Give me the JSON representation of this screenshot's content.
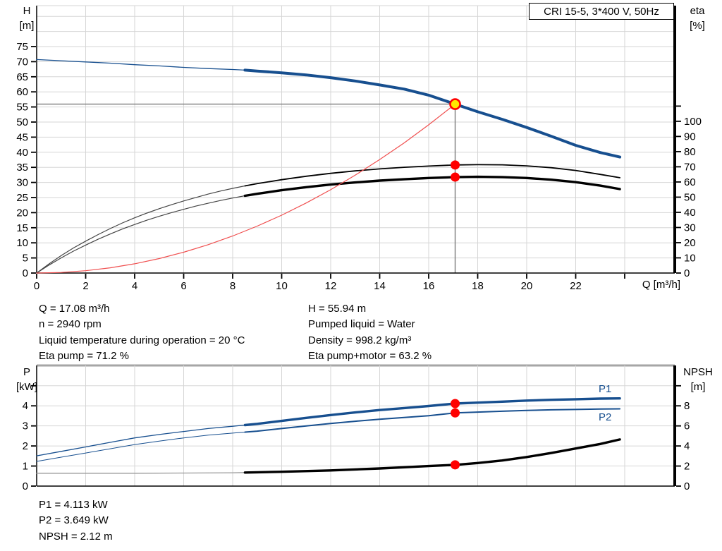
{
  "title_box": {
    "label": "CRI 15-5, 3*400 V, 50Hz"
  },
  "info": {
    "left": [
      "Q = 17.08 m³/h",
      "n = 2940 rpm",
      "Liquid temperature during operation = 20 °C",
      "Eta pump = 71.2 %"
    ],
    "right": [
      "H = 55.94 m",
      "Pumped liquid = Water",
      "Density = 998.2 kg/m³",
      "Eta pump+motor = 63.2 %"
    ],
    "bottom": [
      "P1 = 4.113 kW",
      "P2 = 3.649 kW",
      "NPSH = 2.12 m"
    ]
  },
  "colors": {
    "curve_blue": "#174f8f",
    "marker_red": "#ff0000",
    "system_red": "#f05050",
    "op_yellow": "#ffe800",
    "grid": "#d6d6d6",
    "guide_gray": "#7a7a7a",
    "axis_black": "#000000",
    "eta_thin": "#444444",
    "npsh_thin": "#999999",
    "chart2_top_border": "#a6a6a6"
  },
  "chart_data": [
    {
      "type": "line",
      "title": "CRI 15-5, 3*400 V, 50Hz",
      "grid_color": "#d6d6d6",
      "guide_color": "#7a7a7a",
      "x_axis": {
        "label": "Q [m³/h]",
        "min": 0,
        "max": 26,
        "grid_step": 2,
        "grid_max": 24,
        "labeled_ticks": [
          0,
          2,
          4,
          6,
          8,
          10,
          12,
          14,
          16,
          18,
          20,
          22
        ],
        "unlabeled_ticks": [
          24
        ]
      },
      "y_left": {
        "name": "H",
        "unit": "[m]",
        "min": 0,
        "step": 5,
        "grid_max": 85,
        "labeled_ticks": [
          0,
          5,
          10,
          15,
          20,
          25,
          30,
          35,
          40,
          45,
          50,
          55,
          60,
          65,
          70,
          75
        ],
        "unlabeled_ticks": []
      },
      "y_right": {
        "name": "eta",
        "unit": "[%]",
        "min": 0,
        "step": 10,
        "labeled_ticks": [
          0,
          10,
          20,
          30,
          40,
          50,
          60,
          70,
          80,
          90,
          100
        ],
        "unlabeled_ticks": [
          110
        ]
      },
      "series": [
        {
          "label": "H curve",
          "axis": "left",
          "color": "#174f8f",
          "thin_color": "#174f8f",
          "split_Q": 8.5,
          "thin_width": 1.3,
          "thick_width": 4,
          "points": [
            [
              0,
              70.7
            ],
            [
              1,
              70.3
            ],
            [
              2,
              69.9
            ],
            [
              3,
              69.5
            ],
            [
              4,
              69.0
            ],
            [
              5,
              68.6
            ],
            [
              6,
              68.1
            ],
            [
              7,
              67.7
            ],
            [
              8,
              67.4
            ],
            [
              8.5,
              67.2
            ],
            [
              9,
              66.9
            ],
            [
              10,
              66.3
            ],
            [
              11,
              65.6
            ],
            [
              12,
              64.7
            ],
            [
              13,
              63.6
            ],
            [
              14,
              62.3
            ],
            [
              15,
              60.9
            ],
            [
              16,
              58.9
            ],
            [
              17.08,
              55.94
            ],
            [
              18,
              53.4
            ],
            [
              19,
              50.9
            ],
            [
              20,
              48.2
            ],
            [
              21,
              45.3
            ],
            [
              22,
              42.3
            ],
            [
              23,
              39.9
            ],
            [
              23.8,
              38.4
            ]
          ]
        },
        {
          "label": "Eta pump",
          "axis": "right",
          "color": "#000000",
          "thin_color": "#444444",
          "split_Q": 8.5,
          "thin_width": 1.2,
          "thick_width": 1.8,
          "points": [
            [
              0,
              0
            ],
            [
              0.5,
              6
            ],
            [
              1,
              11.5
            ],
            [
              1.5,
              16.5
            ],
            [
              2,
              21
            ],
            [
              2.5,
              25.3
            ],
            [
              3,
              29.3
            ],
            [
              3.5,
              33
            ],
            [
              4,
              36.4
            ],
            [
              4.5,
              39.5
            ],
            [
              5,
              42.4
            ],
            [
              5.5,
              45
            ],
            [
              6,
              47.5
            ],
            [
              6.5,
              49.8
            ],
            [
              7,
              52
            ],
            [
              7.5,
              54
            ],
            [
              8,
              55.8
            ],
            [
              8.5,
              57.4
            ],
            [
              9,
              58.9
            ],
            [
              10,
              61.5
            ],
            [
              11,
              63.8
            ],
            [
              12,
              65.7
            ],
            [
              13,
              67.3
            ],
            [
              14,
              68.6
            ],
            [
              15,
              69.7
            ],
            [
              16,
              70.5
            ],
            [
              17.08,
              71.2
            ],
            [
              18,
              71.4
            ],
            [
              19,
              71.3
            ],
            [
              20,
              70.6
            ],
            [
              21,
              69.4
            ],
            [
              22,
              67.6
            ],
            [
              23,
              65.0
            ],
            [
              23.8,
              62.8
            ]
          ]
        },
        {
          "label": "Eta pump+motor",
          "axis": "right",
          "color": "#000000",
          "thin_color": "#444444",
          "split_Q": 8.5,
          "thin_width": 1.2,
          "thick_width": 3.4,
          "points": [
            [
              0,
              0
            ],
            [
              0.5,
              5.2
            ],
            [
              1,
              10
            ],
            [
              1.5,
              14.4
            ],
            [
              2,
              18.4
            ],
            [
              2.5,
              22.2
            ],
            [
              3,
              25.7
            ],
            [
              3.5,
              29
            ],
            [
              4,
              32
            ],
            [
              4.5,
              34.8
            ],
            [
              5,
              37.4
            ],
            [
              5.5,
              39.8
            ],
            [
              6,
              42
            ],
            [
              6.5,
              44.1
            ],
            [
              7,
              46
            ],
            [
              7.5,
              47.8
            ],
            [
              8,
              49.4
            ],
            [
              8.5,
              50.9
            ],
            [
              9,
              52.2
            ],
            [
              10,
              54.6
            ],
            [
              11,
              56.6
            ],
            [
              12,
              58.3
            ],
            [
              13,
              59.7
            ],
            [
              14,
              60.9
            ],
            [
              15,
              61.8
            ],
            [
              16,
              62.6
            ],
            [
              17.08,
              63.2
            ],
            [
              18,
              63.4
            ],
            [
              19,
              63.2
            ],
            [
              20,
              62.6
            ],
            [
              21,
              61.5
            ],
            [
              22,
              59.9
            ],
            [
              23,
              57.6
            ],
            [
              23.8,
              55.3
            ]
          ]
        },
        {
          "label": "System curve",
          "axis": "left",
          "color": "#f05050",
          "thin_color": "#f05050",
          "split_Q": null,
          "thin_width": 1.2,
          "thick_width": 1.2,
          "points": [
            [
              0,
              0
            ],
            [
              1,
              0.19
            ],
            [
              2,
              0.77
            ],
            [
              3,
              1.73
            ],
            [
              4,
              3.07
            ],
            [
              5,
              4.79
            ],
            [
              6,
              6.9
            ],
            [
              7,
              9.4
            ],
            [
              8,
              12.27
            ],
            [
              9,
              15.53
            ],
            [
              10,
              19.17
            ],
            [
              11,
              23.2
            ],
            [
              12,
              27.6
            ],
            [
              13,
              32.4
            ],
            [
              14,
              37.6
            ],
            [
              15,
              43.1
            ],
            [
              16,
              49.1
            ],
            [
              17.08,
              55.94
            ]
          ]
        }
      ],
      "operating_point": {
        "Q": 17.08,
        "H": 55.94
      },
      "markers": [
        {
          "Q": 17.08,
          "axis": "right",
          "value": 71.2
        },
        {
          "Q": 17.08,
          "axis": "right",
          "value": 63.2
        }
      ],
      "guide_lines": {
        "horizontal_H": 55.94,
        "vertical_Q": 17.08
      }
    },
    {
      "type": "line",
      "title": "",
      "grid_color": "#d6d6d6",
      "guide_color": "#7a7a7a",
      "x_axis": {
        "label": "",
        "min": 0,
        "max": 26,
        "grid_step": 2,
        "grid_max": 24,
        "labeled_ticks": [],
        "unlabeled_ticks": []
      },
      "y_left": {
        "name": "P",
        "unit": "[kW]",
        "min": 0,
        "step": 1,
        "grid_max": 5,
        "labeled_ticks": [
          0,
          1,
          2,
          3,
          4
        ],
        "unlabeled_ticks": [
          5
        ]
      },
      "y_right": {
        "name": "NPSH",
        "unit": "[m]",
        "min": 0,
        "step": 2,
        "labeled_ticks": [
          0,
          2,
          4,
          6,
          8
        ],
        "unlabeled_ticks": [
          10
        ]
      },
      "series": [
        {
          "label": "P1",
          "axis": "left",
          "color": "#174f8f",
          "thin_color": "#174f8f",
          "split_Q": 8.5,
          "thin_width": 1.3,
          "thick_width": 3.4,
          "points": [
            [
              0,
              1.51
            ],
            [
              1,
              1.73
            ],
            [
              2,
              1.95
            ],
            [
              3,
              2.18
            ],
            [
              4,
              2.4
            ],
            [
              5,
              2.57
            ],
            [
              6,
              2.72
            ],
            [
              7,
              2.87
            ],
            [
              8,
              2.98
            ],
            [
              8.5,
              3.04
            ],
            [
              9,
              3.1
            ],
            [
              10,
              3.25
            ],
            [
              11,
              3.4
            ],
            [
              12,
              3.54
            ],
            [
              13,
              3.67
            ],
            [
              14,
              3.79
            ],
            [
              15,
              3.89
            ],
            [
              16,
              3.99
            ],
            [
              17.08,
              4.113
            ],
            [
              18,
              4.16
            ],
            [
              19,
              4.21
            ],
            [
              20,
              4.26
            ],
            [
              21,
              4.3
            ],
            [
              22,
              4.33
            ],
            [
              23,
              4.36
            ],
            [
              23.8,
              4.37
            ]
          ]
        },
        {
          "label": "P2",
          "axis": "left",
          "color": "#174f8f",
          "thin_color": "#174f8f",
          "split_Q": 8.5,
          "thin_width": 1.0,
          "thick_width": 2.0,
          "points": [
            [
              0,
              1.23
            ],
            [
              1,
              1.44
            ],
            [
              2,
              1.65
            ],
            [
              3,
              1.86
            ],
            [
              4,
              2.07
            ],
            [
              5,
              2.24
            ],
            [
              6,
              2.4
            ],
            [
              7,
              2.54
            ],
            [
              8,
              2.64
            ],
            [
              8.5,
              2.69
            ],
            [
              9,
              2.74
            ],
            [
              10,
              2.87
            ],
            [
              11,
              3.0
            ],
            [
              12,
              3.12
            ],
            [
              13,
              3.23
            ],
            [
              14,
              3.33
            ],
            [
              15,
              3.42
            ],
            [
              16,
              3.51
            ],
            [
              17.08,
              3.649
            ],
            [
              18,
              3.69
            ],
            [
              19,
              3.73
            ],
            [
              20,
              3.77
            ],
            [
              21,
              3.8
            ],
            [
              22,
              3.82
            ],
            [
              23,
              3.84
            ],
            [
              23.8,
              3.85
            ]
          ]
        },
        {
          "label": "NPSH",
          "axis": "right",
          "color": "#000000",
          "thin_color": "#999999",
          "split_Q": 8.5,
          "thin_width": 1.3,
          "thick_width": 3.4,
          "points": [
            [
              0,
              1.28
            ],
            [
              2,
              1.28
            ],
            [
              4,
              1.28
            ],
            [
              6,
              1.3
            ],
            [
              8,
              1.33
            ],
            [
              8.5,
              1.35
            ],
            [
              10,
              1.43
            ],
            [
              12,
              1.56
            ],
            [
              14,
              1.76
            ],
            [
              15,
              1.88
            ],
            [
              16,
              2.0
            ],
            [
              17.08,
              2.12
            ],
            [
              18,
              2.3
            ],
            [
              19,
              2.55
            ],
            [
              20,
              2.9
            ],
            [
              21,
              3.3
            ],
            [
              22,
              3.75
            ],
            [
              23,
              4.2
            ],
            [
              23.8,
              4.65
            ]
          ]
        }
      ],
      "operating_point": null,
      "markers": [
        {
          "Q": 17.08,
          "axis": "left",
          "value": 4.113
        },
        {
          "Q": 17.08,
          "axis": "left",
          "value": 3.649
        },
        {
          "Q": 17.08,
          "axis": "right",
          "value": 2.12
        }
      ],
      "guide_lines": null
    }
  ]
}
